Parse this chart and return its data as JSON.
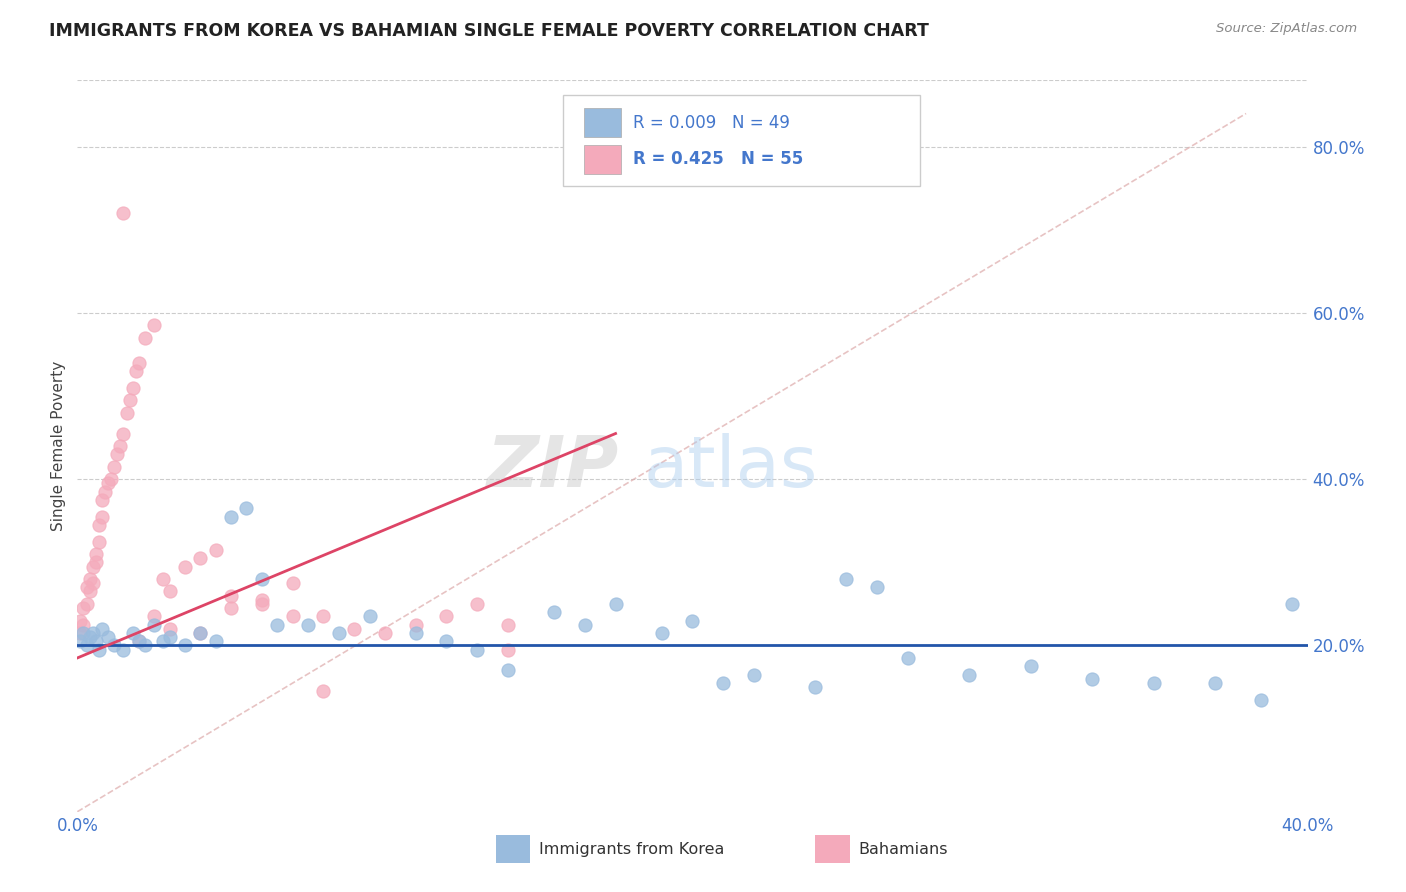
{
  "title": "IMMIGRANTS FROM KOREA VS BAHAMIAN SINGLE FEMALE POVERTY CORRELATION CHART",
  "source": "Source: ZipAtlas.com",
  "ylabel": "Single Female Poverty",
  "watermark_zip": "ZIP",
  "watermark_atlas": "atlas",
  "legend_text1": "R = 0.009   N = 49",
  "legend_text2": "R = 0.425   N = 55",
  "legend_label1": "Immigrants from Korea",
  "legend_label2": "Bahamians",
  "blue_color": "#99BBDD",
  "pink_color": "#F4AABB",
  "blue_line_color": "#2255AA",
  "pink_line_color": "#DD4466",
  "diag_color": "#DDAAAA",
  "grid_color": "#CCCCCC",
  "axis_color": "#4477CC",
  "title_color": "#222222",
  "xlim": [
    0.0,
    0.4
  ],
  "ylim": [
    0.0,
    0.88
  ],
  "ytick_vals": [
    0.2,
    0.4,
    0.6,
    0.8
  ],
  "blue_scatter_x": [
    0.001,
    0.002,
    0.003,
    0.004,
    0.005,
    0.006,
    0.007,
    0.008,
    0.01,
    0.012,
    0.015,
    0.018,
    0.02,
    0.022,
    0.025,
    0.028,
    0.03,
    0.035,
    0.04,
    0.045,
    0.05,
    0.055,
    0.06,
    0.065,
    0.075,
    0.085,
    0.095,
    0.11,
    0.12,
    0.13,
    0.14,
    0.155,
    0.165,
    0.175,
    0.19,
    0.2,
    0.21,
    0.22,
    0.24,
    0.25,
    0.26,
    0.27,
    0.29,
    0.31,
    0.33,
    0.35,
    0.37,
    0.385,
    0.395
  ],
  "blue_scatter_y": [
    0.205,
    0.215,
    0.2,
    0.21,
    0.215,
    0.205,
    0.195,
    0.22,
    0.21,
    0.2,
    0.195,
    0.215,
    0.205,
    0.2,
    0.225,
    0.205,
    0.21,
    0.2,
    0.215,
    0.205,
    0.355,
    0.365,
    0.28,
    0.225,
    0.225,
    0.215,
    0.235,
    0.215,
    0.205,
    0.195,
    0.17,
    0.24,
    0.225,
    0.25,
    0.215,
    0.23,
    0.155,
    0.165,
    0.15,
    0.28,
    0.27,
    0.185,
    0.165,
    0.175,
    0.16,
    0.155,
    0.155,
    0.135,
    0.25
  ],
  "pink_scatter_x": [
    0.001,
    0.001,
    0.002,
    0.002,
    0.003,
    0.003,
    0.004,
    0.004,
    0.005,
    0.005,
    0.006,
    0.006,
    0.007,
    0.007,
    0.008,
    0.008,
    0.009,
    0.01,
    0.011,
    0.012,
    0.013,
    0.014,
    0.015,
    0.016,
    0.017,
    0.018,
    0.019,
    0.02,
    0.022,
    0.025,
    0.028,
    0.03,
    0.035,
    0.04,
    0.045,
    0.05,
    0.06,
    0.07,
    0.08,
    0.09,
    0.1,
    0.11,
    0.12,
    0.13,
    0.14,
    0.02,
    0.025,
    0.03,
    0.04,
    0.05,
    0.06,
    0.07,
    0.08,
    0.015,
    0.14
  ],
  "pink_scatter_y": [
    0.215,
    0.23,
    0.225,
    0.245,
    0.25,
    0.27,
    0.265,
    0.28,
    0.275,
    0.295,
    0.3,
    0.31,
    0.325,
    0.345,
    0.355,
    0.375,
    0.385,
    0.395,
    0.4,
    0.415,
    0.43,
    0.44,
    0.455,
    0.48,
    0.495,
    0.51,
    0.53,
    0.54,
    0.57,
    0.585,
    0.28,
    0.265,
    0.295,
    0.305,
    0.315,
    0.26,
    0.255,
    0.275,
    0.235,
    0.22,
    0.215,
    0.225,
    0.235,
    0.25,
    0.225,
    0.205,
    0.235,
    0.22,
    0.215,
    0.245,
    0.25,
    0.235,
    0.145,
    0.72,
    0.195
  ],
  "pink_line_x": [
    0.0,
    0.175
  ],
  "pink_line_y": [
    0.185,
    0.455
  ],
  "blue_line_y": 0.2
}
